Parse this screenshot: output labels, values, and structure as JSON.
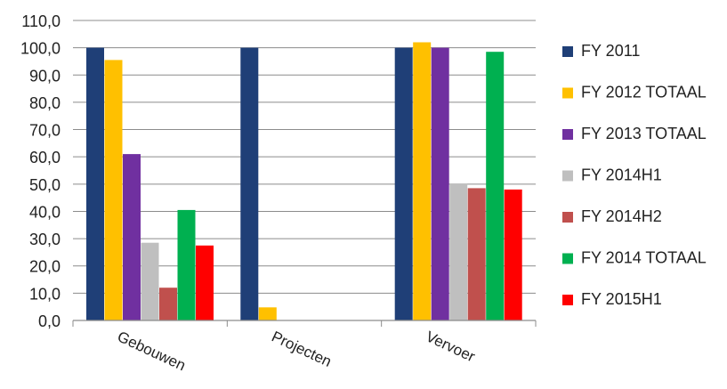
{
  "chart_data": {
    "type": "bar",
    "title": "",
    "xlabel": "",
    "ylabel": "",
    "ylim": [
      0,
      110
    ],
    "yticks": [
      "0,0",
      "10,0",
      "20,0",
      "30,0",
      "40,0",
      "50,0",
      "60,0",
      "70,0",
      "80,0",
      "90,0",
      "100,0",
      "110,0"
    ],
    "grid": true,
    "legend_position": "right",
    "categories": [
      "Gebouwen",
      "Projecten",
      "Vervoer"
    ],
    "series": [
      {
        "name": "FY 2011",
        "color": "#1F3F77",
        "values": [
          100.0,
          100.0,
          100.0
        ]
      },
      {
        "name": "FY 2012 TOTAAL",
        "color": "#FFC000",
        "values": [
          95.5,
          4.8,
          102.0
        ]
      },
      {
        "name": "FY 2013 TOTAAL",
        "color": "#7030A0",
        "values": [
          61.0,
          null,
          100.0
        ]
      },
      {
        "name": "FY 2014H1",
        "color": "#BFBFBF",
        "values": [
          28.5,
          null,
          50.0
        ]
      },
      {
        "name": "FY 2014H2",
        "color": "#C0504D",
        "values": [
          12.0,
          null,
          48.5
        ]
      },
      {
        "name": "FY 2014 TOTAAL",
        "color": "#00B050",
        "values": [
          40.5,
          null,
          98.5
        ]
      },
      {
        "name": "FY 2015H1",
        "color": "#FF0000",
        "values": [
          27.5,
          null,
          48.0
        ]
      }
    ]
  }
}
